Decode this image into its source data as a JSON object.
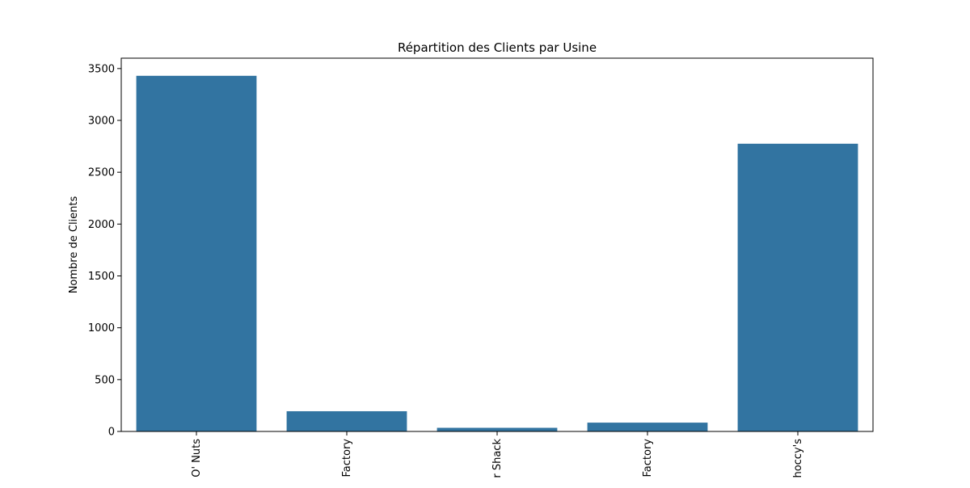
{
  "chart_data": {
    "type": "bar",
    "title": "Répartition des Clients par Usine",
    "xlabel": "",
    "ylabel": "Nombre de Clients",
    "categories": [
      "O' Nuts",
      "Factory",
      "r Shack",
      "Factory",
      "hoccy's"
    ],
    "values": [
      3430,
      195,
      35,
      85,
      2775
    ],
    "ylim": [
      0,
      3600
    ],
    "yticks": [
      0,
      500,
      1000,
      1500,
      2000,
      2500,
      3000,
      3500
    ],
    "grid": false,
    "legend": "none",
    "bar_color": "#3274a1"
  }
}
